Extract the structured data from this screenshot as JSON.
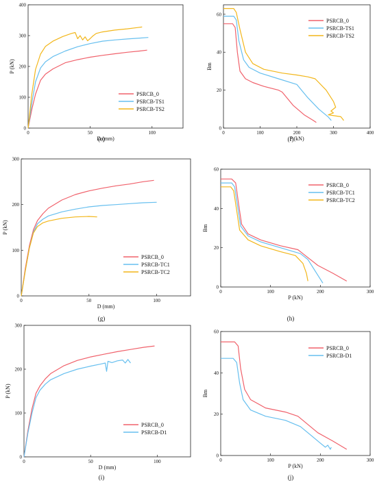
{
  "chart_data": [
    {
      "id": "e",
      "type": "line",
      "panel_label": "(e)",
      "xlabel": "D (mm)",
      "ylabel": "P (kN)",
      "xlim": [
        0,
        125
      ],
      "ylim": [
        0,
        400
      ],
      "xticks": [
        0,
        50,
        100
      ],
      "yticks": [
        0,
        100,
        200,
        300,
        400
      ],
      "legend_position": "bottom-right",
      "series": [
        {
          "name": "PSRCB_0",
          "color": "#f0606a",
          "x": [
            0,
            3,
            6,
            10,
            14,
            20,
            30,
            40,
            50,
            60,
            70,
            80,
            90,
            96
          ],
          "y": [
            0,
            60,
            110,
            155,
            175,
            192,
            212,
            222,
            230,
            236,
            241,
            246,
            250,
            253
          ]
        },
        {
          "name": "PSRCB-TS1",
          "color": "#66bfef",
          "x": [
            0,
            3,
            6,
            10,
            14,
            20,
            30,
            40,
            50,
            60,
            70,
            80,
            90,
            97
          ],
          "y": [
            0,
            80,
            150,
            195,
            215,
            232,
            250,
            264,
            274,
            282,
            286,
            289,
            292,
            294
          ]
        },
        {
          "name": "PSRCB-TS2",
          "color": "#f2b619",
          "x": [
            0,
            3,
            6,
            10,
            14,
            20,
            28,
            35,
            38,
            40,
            42,
            44,
            46,
            48,
            50,
            52,
            55,
            60,
            70,
            80,
            88,
            92
          ],
          "y": [
            0,
            110,
            190,
            240,
            265,
            282,
            297,
            307,
            310,
            290,
            300,
            286,
            296,
            283,
            290,
            298,
            307,
            312,
            318,
            322,
            326,
            328
          ]
        }
      ]
    },
    {
      "id": "f",
      "type": "line",
      "panel_label": "(f)",
      "xlabel": "P (kN)",
      "ylabel": "Bm",
      "xlim": [
        0,
        400
      ],
      "ylim": [
        0,
        65
      ],
      "xticks": [
        0,
        100,
        200,
        300,
        400
      ],
      "yticks": [
        0,
        20,
        40,
        60
      ],
      "legend_position": "top-right",
      "series": [
        {
          "name": "PSRCB_0",
          "color": "#f0606a",
          "x": [
            0,
            25,
            32,
            38,
            45,
            60,
            80,
            110,
            150,
            160,
            190,
            220,
            245,
            253
          ],
          "y": [
            55,
            55,
            53,
            40,
            30,
            26,
            24,
            22,
            20,
            19,
            12,
            7,
            4,
            3
          ]
        },
        {
          "name": "PSRCB-TS1",
          "color": "#66bfef",
          "x": [
            0,
            28,
            35,
            42,
            55,
            70,
            100,
            150,
            200,
            230,
            260,
            285,
            294
          ],
          "y": [
            59,
            59,
            57,
            46,
            36,
            32,
            29,
            26,
            23,
            16,
            10,
            6,
            4
          ]
        },
        {
          "name": "PSRCB-TS2",
          "color": "#f2b619",
          "x": [
            0,
            28,
            35,
            45,
            60,
            80,
            110,
            160,
            200,
            230,
            250,
            280,
            300,
            306,
            293,
            300,
            286,
            320,
            328
          ],
          "y": [
            63,
            63,
            61,
            52,
            40,
            34,
            31,
            29,
            28,
            27,
            26,
            20,
            14,
            11,
            9,
            8,
            7,
            6,
            4
          ]
        }
      ]
    },
    {
      "id": "g",
      "type": "line",
      "panel_label": "(g)",
      "xlabel": "D (mm)",
      "ylabel": "P (kN)",
      "xlim": [
        0,
        125
      ],
      "ylim": [
        0,
        300
      ],
      "xticks": [
        0,
        50,
        100
      ],
      "yticks": [
        0,
        100,
        200,
        300
      ],
      "legend_position": "bottom-right",
      "series": [
        {
          "name": "PSRCB_0",
          "color": "#f0606a",
          "x": [
            0,
            3,
            6,
            9,
            12,
            16,
            20,
            30,
            40,
            50,
            60,
            70,
            80,
            90,
            98
          ],
          "y": [
            0,
            60,
            110,
            145,
            165,
            180,
            192,
            210,
            222,
            230,
            236,
            241,
            245,
            250,
            253
          ]
        },
        {
          "name": "PSRCB-TC1",
          "color": "#66bfef",
          "x": [
            0,
            3,
            6,
            9,
            12,
            16,
            20,
            30,
            40,
            50,
            60,
            70,
            80,
            90,
            100
          ],
          "y": [
            0,
            55,
            105,
            140,
            158,
            168,
            175,
            184,
            190,
            195,
            198,
            200,
            202,
            204,
            205
          ]
        },
        {
          "name": "PSRCB-TC2",
          "color": "#f2b619",
          "x": [
            0,
            3,
            6,
            9,
            12,
            16,
            20,
            30,
            40,
            50,
            56
          ],
          "y": [
            0,
            55,
            105,
            138,
            152,
            160,
            164,
            170,
            173,
            174,
            173
          ]
        }
      ]
    },
    {
      "id": "h",
      "type": "line",
      "panel_label": "(h)",
      "xlabel": "P (kN)",
      "ylabel": "Bm",
      "xlim": [
        0,
        300
      ],
      "ylim": [
        0,
        60
      ],
      "xticks": [
        0,
        100,
        200,
        300
      ],
      "yticks": [
        0,
        20,
        40,
        60
      ],
      "legend_position": "top-right",
      "series": [
        {
          "name": "PSRCB_0",
          "color": "#f0606a",
          "x": [
            0,
            22,
            30,
            36,
            42,
            55,
            80,
            120,
            155,
            165,
            195,
            225,
            253
          ],
          "y": [
            55,
            55,
            53,
            42,
            32,
            27,
            24,
            21,
            19,
            17,
            11,
            7,
            3
          ]
        },
        {
          "name": "PSRCB-TC1",
          "color": "#66bfef",
          "x": [
            0,
            22,
            28,
            34,
            40,
            55,
            80,
            120,
            160,
            175,
            195,
            205
          ],
          "y": [
            53,
            53,
            51,
            41,
            31,
            26,
            23,
            20,
            17,
            14,
            6,
            2
          ]
        },
        {
          "name": "PSRCB-TC2",
          "color": "#f2b619",
          "x": [
            0,
            20,
            26,
            32,
            38,
            55,
            80,
            120,
            150,
            165,
            172,
            175
          ],
          "y": [
            51,
            51,
            49,
            39,
            29,
            24,
            21,
            18,
            16,
            12,
            7,
            3
          ]
        }
      ]
    },
    {
      "id": "i",
      "type": "line",
      "panel_label": "(i)",
      "xlabel": "D (mm)",
      "ylabel": "P (kN)",
      "xlim": [
        0,
        125
      ],
      "ylim": [
        0,
        300
      ],
      "xticks": [
        0,
        50,
        100
      ],
      "yticks": [
        0,
        100,
        200,
        300
      ],
      "legend_position": "bottom-right",
      "series": [
        {
          "name": "PSRCB_0",
          "color": "#f0606a",
          "x": [
            0,
            3,
            6,
            9,
            12,
            16,
            20,
            30,
            40,
            50,
            60,
            70,
            80,
            90,
            98
          ],
          "y": [
            0,
            60,
            110,
            145,
            162,
            178,
            190,
            208,
            220,
            228,
            234,
            240,
            245,
            250,
            253
          ]
        },
        {
          "name": "PSRCB-D1",
          "color": "#66bfef",
          "x": [
            0,
            3,
            6,
            9,
            12,
            16,
            20,
            30,
            40,
            50,
            58,
            61,
            62,
            63,
            66,
            70,
            74,
            76,
            78,
            80
          ],
          "y": [
            0,
            55,
            100,
            135,
            152,
            166,
            176,
            190,
            200,
            207,
            212,
            214,
            195,
            218,
            215,
            219,
            221,
            214,
            222,
            214
          ]
        }
      ]
    },
    {
      "id": "j",
      "type": "line",
      "panel_label": "(j)",
      "xlabel": "P (kN)",
      "ylabel": "Bm",
      "xlim": [
        0,
        300
      ],
      "ylim": [
        0,
        60
      ],
      "xticks": [
        0,
        100,
        200,
        300
      ],
      "yticks": [
        0,
        20,
        40,
        60
      ],
      "legend_position": "top-right",
      "series": [
        {
          "name": "PSRCB_0",
          "color": "#f0606a",
          "x": [
            0,
            28,
            35,
            40,
            48,
            60,
            90,
            130,
            155,
            165,
            195,
            225,
            253
          ],
          "y": [
            55,
            55,
            53,
            42,
            32,
            27,
            23,
            21,
            19,
            17,
            11,
            7,
            3
          ]
        },
        {
          "name": "PSRCB-D1",
          "color": "#66bfef",
          "x": [
            0,
            25,
            32,
            38,
            45,
            60,
            90,
            130,
            160,
            180,
            200,
            210,
            215,
            220,
            222
          ],
          "y": [
            47,
            47,
            45,
            35,
            27,
            22,
            19,
            17,
            14,
            10,
            6,
            4,
            5,
            3,
            4
          ]
        }
      ]
    }
  ]
}
